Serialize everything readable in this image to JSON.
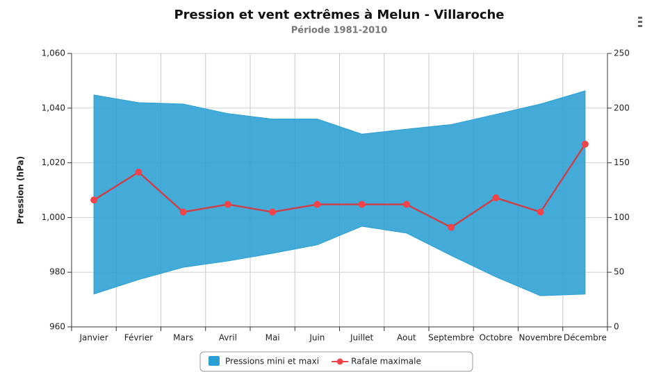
{
  "chart_data": {
    "type": "arearange",
    "title": "Pression et vent extrêmes à Melun - Villaroche",
    "subtitle": "Période 1981-2010",
    "ylabel": "Pression (hPa)",
    "categories": [
      "Janvier",
      "Février",
      "Mars",
      "Avril",
      "Mai",
      "Juin",
      "Juillet",
      "Aout",
      "Septembre",
      "Octobre",
      "Novembre",
      "Décembre"
    ],
    "series": [
      {
        "name": "Pressions mini et maxi",
        "type": "arearange",
        "color": "#2a9fd4",
        "low": [
          972,
          977.3,
          981.8,
          984.1,
          986.9,
          990,
          996.8,
          994.3,
          986.1,
          978.3,
          971.4,
          972
        ],
        "high": [
          1044.8,
          1042,
          1041.5,
          1038,
          1036,
          1036,
          1030.5,
          1032.3,
          1034,
          1037.7,
          1041.5,
          1046.3
        ]
      },
      {
        "name": "Rafale maximale",
        "type": "line",
        "color": "#f2434a",
        "axis": "y2",
        "values": [
          116,
          141.5,
          105,
          112,
          105,
          112,
          112,
          112,
          91,
          118,
          105,
          167
        ]
      }
    ],
    "ylim": [
      960,
      1060
    ],
    "yticks": [
      960,
      980,
      {
        "value": 1000,
        "label": "1,000"
      },
      {
        "value": 1020,
        "label": "1,020"
      },
      {
        "value": 1040,
        "label": "1,040"
      },
      {
        "value": 1060,
        "label": "1,060"
      }
    ],
    "y2lim": [
      0,
      250
    ],
    "y2ticks": [
      0,
      50,
      100,
      150,
      200,
      250
    ],
    "grid": true,
    "legend": "bottom"
  }
}
